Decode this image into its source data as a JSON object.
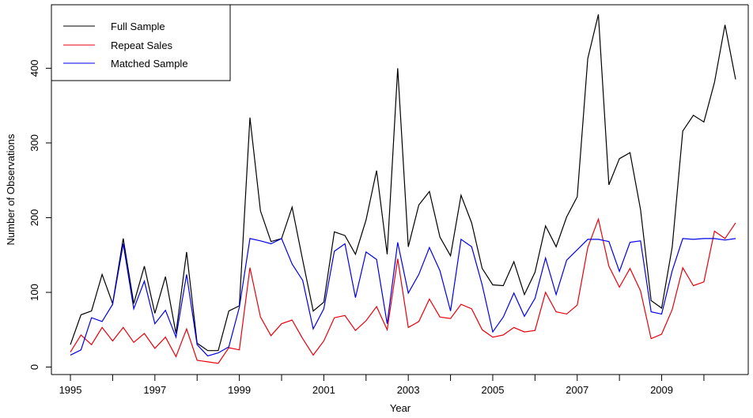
{
  "chart_data": {
    "type": "line",
    "xlabel": "Year",
    "ylabel": "Number of Observations",
    "xlim": [
      1994.55,
      2011.05
    ],
    "ylim": [
      -10,
      485
    ],
    "xticks": [
      1995,
      1997,
      1999,
      2001,
      2003,
      2005,
      2007,
      2009
    ],
    "xminor_ticks": [
      1996,
      1998,
      2000,
      2002,
      2004,
      2006,
      2008,
      2010
    ],
    "yticks": [
      0,
      100,
      200,
      300,
      400
    ],
    "grid": false,
    "legend": {
      "position": "top-left"
    },
    "x": [
      1995,
      1995.25,
      1995.5,
      1995.75,
      1996,
      1996.25,
      1996.5,
      1996.75,
      1997,
      1997.25,
      1997.5,
      1997.75,
      1998,
      1998.25,
      1998.5,
      1998.75,
      1999,
      1999.25,
      1999.5,
      1999.75,
      2000,
      2000.25,
      2000.5,
      2000.75,
      2001,
      2001.25,
      2001.5,
      2001.75,
      2002,
      2002.25,
      2002.5,
      2002.75,
      2003,
      2003.25,
      2003.5,
      2003.75,
      2004,
      2004.25,
      2004.5,
      2004.75,
      2005,
      2005.25,
      2005.5,
      2005.75,
      2006,
      2006.25,
      2006.5,
      2006.75,
      2007,
      2007.25,
      2007.5,
      2007.75,
      2008,
      2008.25,
      2008.5,
      2008.75,
      2009,
      2009.25,
      2009.5,
      2009.75,
      2010,
      2010.25,
      2010.5,
      2010.75
    ],
    "series": [
      {
        "name": "Full Sample",
        "color": "#000000",
        "values": [
          30,
          70,
          75,
          124,
          85,
          172,
          85,
          135,
          72,
          121,
          45,
          154,
          32,
          22,
          22,
          75,
          82,
          334,
          209,
          168,
          172,
          214,
          143,
          75,
          87,
          181,
          176,
          151,
          197,
          263,
          151,
          400,
          161,
          217,
          235,
          174,
          149,
          230,
          193,
          132,
          110,
          109,
          141,
          97,
          127,
          189,
          161,
          201,
          228,
          413,
          472,
          244,
          279,
          287,
          211,
          89,
          79,
          161,
          316,
          337,
          328,
          381,
          458,
          385
        ]
      },
      {
        "name": "Repeat Sales",
        "color": "#e8000b",
        "values": [
          20,
          43,
          30,
          53,
          35,
          53,
          33,
          45,
          25,
          40,
          14,
          51,
          9,
          7,
          5,
          26,
          23,
          133,
          67,
          42,
          58,
          63,
          38,
          16,
          35,
          66,
          69,
          49,
          62,
          81,
          50,
          145,
          53,
          61,
          91,
          67,
          65,
          84,
          78,
          50,
          40,
          43,
          53,
          47,
          49,
          100,
          74,
          71,
          83,
          160,
          198,
          135,
          107,
          132,
          102,
          38,
          44,
          77,
          133,
          109,
          114,
          182,
          172,
          193
        ]
      },
      {
        "name": "Matched Sample",
        "color": "#0000e8",
        "values": [
          16,
          23,
          66,
          61,
          84,
          165,
          78,
          115,
          58,
          76,
          40,
          124,
          30,
          15,
          19,
          27,
          80,
          172,
          169,
          165,
          172,
          138,
          116,
          51,
          78,
          155,
          165,
          93,
          154,
          144,
          58,
          167,
          99,
          124,
          160,
          129,
          75,
          171,
          161,
          110,
          47,
          67,
          99,
          68,
          92,
          146,
          97,
          143,
          157,
          171,
          171,
          168,
          128,
          167,
          169,
          74,
          71,
          129,
          172,
          171,
          172,
          172,
          170,
          172
        ]
      }
    ]
  }
}
